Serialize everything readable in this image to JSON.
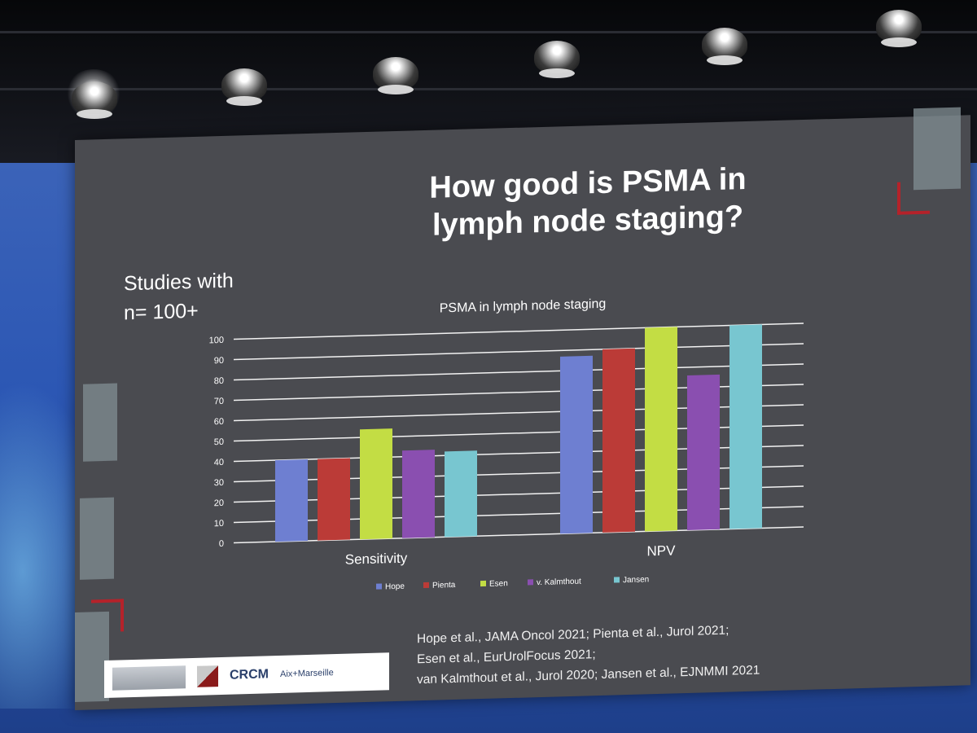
{
  "slide": {
    "title_line1": "How good is PSMA in",
    "title_line2": "lymph node staging?",
    "subtitle_line1": "Studies with",
    "subtitle_line2": "n= 100+",
    "citations": [
      "Hope et al., JAMA Oncol 2021; Pienta et al., Jurol 2021;",
      "Esen et al., EurUrolFocus 2021;",
      "van Kalmthout et al., Jurol 2020; Jansen et al., EJNMMI 2021"
    ],
    "logos": {
      "crcm": "CRCM",
      "amu": "Aix+Marseille"
    }
  },
  "chart_data": {
    "type": "bar",
    "title": "PSMA in lymph node staging",
    "categories": [
      "Sensitivity",
      "NPV"
    ],
    "yticks": [
      "0",
      "10",
      "20",
      "30",
      "40",
      "50",
      "60",
      "70",
      "80",
      "90",
      "100"
    ],
    "ylim": [
      0,
      100
    ],
    "grid": true,
    "legend_position": "bottom",
    "series": [
      {
        "name": "Hope",
        "color": "#6e7fd1",
        "values": [
          40,
          87
        ]
      },
      {
        "name": "Pienta",
        "color": "#bb3b37",
        "values": [
          40,
          90
        ]
      },
      {
        "name": "Esen",
        "color": "#c3dd44",
        "values": [
          54,
          100
        ]
      },
      {
        "name": "v. Kalmthout",
        "color": "#8a4fb0",
        "values": [
          43,
          76
        ]
      },
      {
        "name": "Jansen",
        "color": "#78c6d0",
        "values": [
          42,
          100
        ]
      }
    ]
  }
}
